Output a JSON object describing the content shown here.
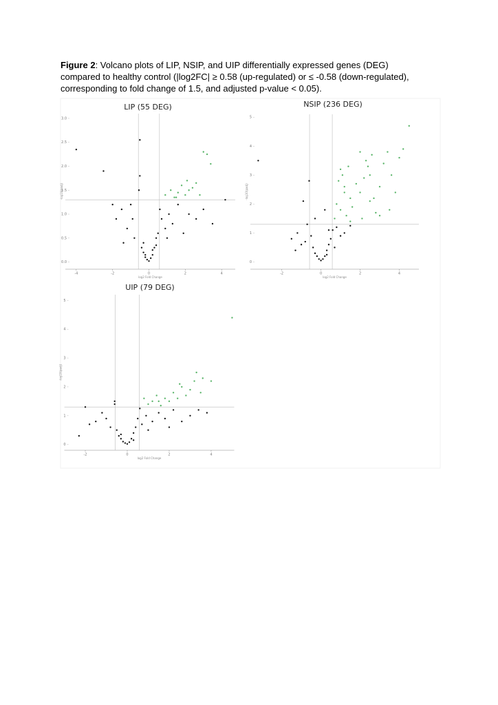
{
  "caption": {
    "label": "Figure 2",
    "text": ": Volcano plots of LIP, NSIP, and UIP differentially expressed genes (DEG) compared to healthy control (|log2FC| ≥ 0.58 (up-regulated) or ≤ -0.58 (down-regulated), corresponding to fold change of 1.5, and adjusted p-value < 0.05)."
  },
  "chart_data": [
    {
      "type": "scatter",
      "title": "LIP (55 DEG)",
      "xlabel": "log2 Fold Change",
      "ylabel": "-log10(padj)",
      "xlim": [
        -4.6,
        4.75
      ],
      "ylim": [
        -0.15,
        3.1
      ],
      "xticks": [
        -4,
        -2,
        0,
        2,
        4
      ],
      "yticks": [
        {
          "value": 0,
          "label": "0.0"
        },
        {
          "value": 0.5,
          "label": "0.5"
        },
        {
          "value": 1,
          "label": "1.0"
        },
        {
          "value": 1.5,
          "label": "1.5"
        },
        {
          "value": 2,
          "label": "2.0"
        },
        {
          "value": 2.5,
          "label": "2.5"
        },
        {
          "value": 3,
          "label": "3.0"
        }
      ],
      "vlines": [
        -0.58,
        0.58
      ],
      "hline": 1.3,
      "series": [
        {
          "color": "#1a1a1a",
          "x": [
            -4.0,
            -2.5,
            -1.8,
            -1.5,
            -1.2,
            -1.0,
            -0.8,
            -0.55,
            -0.5,
            -0.4,
            -0.3,
            -0.2,
            -0.1,
            0.0,
            0.1,
            0.2,
            0.3,
            0.4,
            0.5,
            0.7,
            0.9,
            1.1,
            1.3,
            1.6,
            1.9,
            2.2,
            2.6,
            3.0,
            3.5,
            4.2,
            -0.5,
            -0.3,
            0.2,
            0.6,
            -1.4,
            -2.0,
            -0.9,
            1.0,
            -0.2,
            0.4
          ],
          "y": [
            2.35,
            1.9,
            0.9,
            1.1,
            0.7,
            1.2,
            0.5,
            1.5,
            2.55,
            0.3,
            0.2,
            0.1,
            0.05,
            0.02,
            0.08,
            0.15,
            0.3,
            0.5,
            0.6,
            0.9,
            0.7,
            1.0,
            0.8,
            1.2,
            0.6,
            1.0,
            0.9,
            1.1,
            0.8,
            1.3,
            1.8,
            0.4,
            0.25,
            1.1,
            0.4,
            1.2,
            0.9,
            0.5,
            0.15,
            0.35
          ]
        },
        {
          "color": "#5bb56a",
          "x": [
            0.9,
            1.2,
            1.4,
            1.6,
            1.8,
            2.0,
            2.2,
            2.4,
            2.6,
            2.8,
            3.0,
            3.2,
            3.4,
            1.5,
            2.1
          ],
          "y": [
            1.4,
            1.5,
            1.35,
            1.45,
            1.6,
            1.4,
            1.5,
            1.55,
            1.65,
            1.4,
            2.3,
            2.25,
            2.05,
            1.35,
            1.7
          ]
        }
      ]
    },
    {
      "type": "scatter",
      "title": "NSIP (236 DEG)",
      "xlabel": "log2 Fold Change",
      "ylabel": "-log10(padj)",
      "xlim": [
        -3.6,
        5.0
      ],
      "ylim": [
        -0.25,
        5.1
      ],
      "xticks": [
        -2,
        0,
        2,
        4
      ],
      "yticks": [
        0,
        1,
        2,
        3,
        4,
        5
      ],
      "vlines": [
        -0.58,
        0.58
      ],
      "hline": 1.3,
      "series": [
        {
          "color": "#1a1a1a",
          "x": [
            -3.2,
            -1.5,
            -1.2,
            -1.0,
            -0.9,
            -0.7,
            -0.5,
            -0.4,
            -0.3,
            -0.2,
            -0.1,
            0.0,
            0.1,
            0.2,
            0.3,
            0.4,
            0.5,
            0.6,
            0.8,
            1.0,
            1.2,
            1.5,
            -0.6,
            -0.3,
            0.2,
            0.4,
            -1.3,
            -0.8,
            0.7,
            0.3
          ],
          "y": [
            3.5,
            0.8,
            1.0,
            0.6,
            2.1,
            1.3,
            0.9,
            0.5,
            0.3,
            0.2,
            0.1,
            0.05,
            0.1,
            0.2,
            0.4,
            0.6,
            0.8,
            1.1,
            1.2,
            0.9,
            1.0,
            1.25,
            2.8,
            1.5,
            1.8,
            1.1,
            0.4,
            0.7,
            0.5,
            0.25
          ]
        },
        {
          "color": "#5bb56a",
          "x": [
            0.7,
            0.8,
            0.9,
            1.0,
            1.1,
            1.2,
            1.3,
            1.4,
            1.5,
            1.6,
            1.8,
            2.0,
            2.1,
            2.2,
            2.4,
            2.5,
            2.6,
            2.8,
            3.0,
            3.2,
            3.4,
            3.6,
            3.8,
            4.0,
            4.2,
            4.5,
            1.0,
            1.5,
            2.0,
            2.5,
            3.0,
            3.5,
            1.2,
            2.3,
            2.7
          ],
          "y": [
            1.5,
            2.0,
            2.8,
            1.8,
            3.0,
            2.4,
            1.6,
            3.3,
            2.2,
            1.9,
            2.7,
            3.8,
            1.5,
            2.9,
            3.3,
            2.1,
            3.7,
            1.7,
            2.6,
            3.4,
            3.8,
            3.0,
            2.4,
            3.6,
            3.9,
            4.7,
            3.2,
            1.4,
            2.4,
            3.0,
            1.6,
            1.8,
            2.6,
            3.5,
            2.2
          ]
        }
      ]
    },
    {
      "type": "scatter",
      "title": "UIP (79 DEG)",
      "xlabel": "log2 Fold Change",
      "ylabel": "-log10(padj)",
      "xlim": [
        -3.0,
        5.1
      ],
      "ylim": [
        -0.2,
        5.2
      ],
      "xticks": [
        -2,
        0,
        2,
        4
      ],
      "yticks": [
        0,
        1,
        2,
        3,
        4,
        5
      ],
      "vlines": [
        -0.58,
        0.58
      ],
      "hline": 1.3,
      "series": [
        {
          "color": "#1a1a1a",
          "x": [
            -2.3,
            -2.0,
            -1.5,
            -1.2,
            -1.0,
            -0.8,
            -0.6,
            -0.5,
            -0.4,
            -0.3,
            -0.2,
            -0.1,
            0.0,
            0.1,
            0.2,
            0.3,
            0.4,
            0.5,
            0.7,
            0.9,
            1.2,
            1.5,
            1.8,
            2.2,
            2.6,
            3.0,
            3.4,
            3.8,
            -0.6,
            -1.8,
            0.3,
            -0.3,
            1.0,
            2.0,
            0.6
          ],
          "y": [
            0.3,
            1.3,
            0.8,
            1.1,
            0.9,
            0.6,
            1.5,
            0.5,
            0.3,
            0.2,
            0.1,
            0.05,
            0.02,
            0.08,
            0.2,
            0.4,
            0.6,
            0.9,
            0.7,
            1.0,
            0.8,
            1.1,
            0.9,
            1.2,
            0.8,
            1.0,
            1.2,
            1.1,
            1.4,
            0.7,
            0.15,
            0.35,
            0.5,
            0.6,
            1.25
          ]
        },
        {
          "color": "#5bb56a",
          "x": [
            0.8,
            1.0,
            1.2,
            1.4,
            1.6,
            1.8,
            2.0,
            2.2,
            2.4,
            2.6,
            2.8,
            3.0,
            3.2,
            3.3,
            3.6,
            4.0,
            5.0,
            1.5,
            2.5,
            3.5
          ],
          "y": [
            1.6,
            1.4,
            1.5,
            1.7,
            1.35,
            1.6,
            1.5,
            1.8,
            1.6,
            2.0,
            1.7,
            1.9,
            2.2,
            2.5,
            2.3,
            2.2,
            4.4,
            1.5,
            2.1,
            1.8
          ]
        }
      ]
    }
  ]
}
